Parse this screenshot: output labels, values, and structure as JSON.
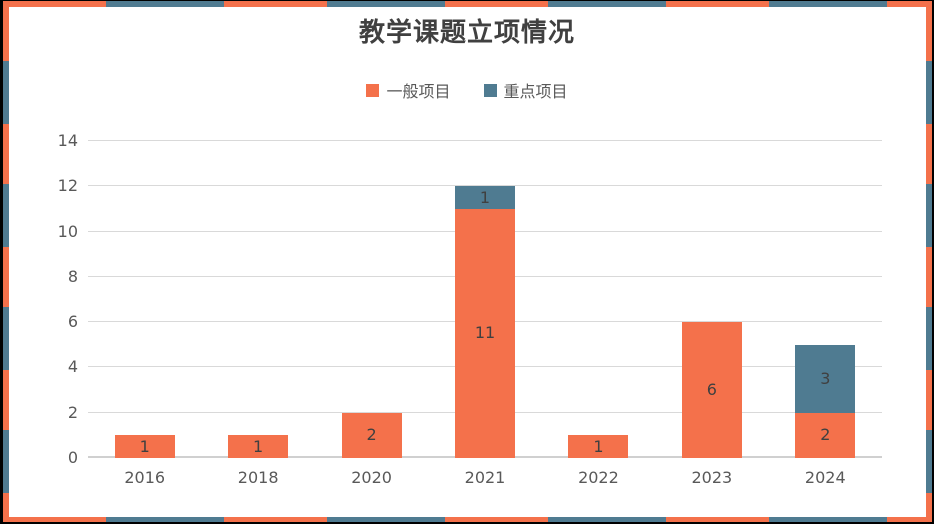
{
  "theme": {
    "accent_orange": "#F4714B",
    "accent_teal": "#4F7B91",
    "frame_color": "#000000",
    "background": "#FFFFFF",
    "title_color": "#404040",
    "axis_label_color": "#595959",
    "data_label_color": "#404040",
    "gridline_color": "#D9D9D9",
    "axis_line_color": "#D0D0D0"
  },
  "chart_data": {
    "type": "bar",
    "stacked": true,
    "title": "教学课题立项情况",
    "categories": [
      "2016",
      "2018",
      "2020",
      "2021",
      "2022",
      "2023",
      "2024"
    ],
    "series": [
      {
        "name": "一般项目",
        "color": "#F4714B",
        "values": [
          1,
          1,
          2,
          11,
          1,
          6,
          2
        ]
      },
      {
        "name": "重点项目",
        "color": "#4F7B91",
        "values": [
          0,
          0,
          0,
          1,
          0,
          0,
          3
        ]
      }
    ],
    "totals": [
      1,
      1,
      2,
      12,
      1,
      6,
      5
    ],
    "xlabel": "",
    "ylabel": "",
    "ylim": [
      0,
      14
    ],
    "yticks": [
      0,
      2,
      4,
      6,
      8,
      10,
      12,
      14
    ],
    "grid": true,
    "data_labels": true,
    "legend_position": "top"
  }
}
